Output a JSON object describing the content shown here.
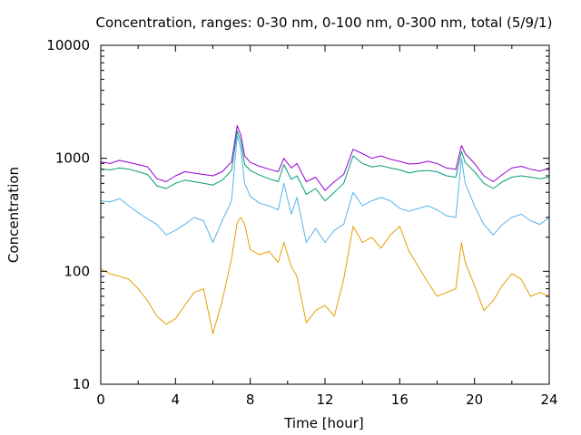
{
  "chart_data": {
    "type": "line",
    "title": "Concentration, ranges: 0-30 nm, 0-100 nm, 0-300 nm, total (5/9/1)",
    "xlabel": "Time [hour]",
    "ylabel": "Concentration",
    "xlim": [
      0,
      24
    ],
    "ylim": [
      10,
      10000
    ],
    "yscale": "log",
    "grid": false,
    "xticks": [
      0,
      4,
      8,
      12,
      16,
      20,
      24
    ],
    "yticks": [
      10,
      100,
      1000,
      10000
    ],
    "xtick_labels": [
      "0",
      "4",
      "8",
      "12",
      "16",
      "20",
      "24"
    ],
    "ytick_labels": [
      "10",
      "100",
      "1000",
      "10000"
    ],
    "x": [
      0,
      0.5,
      1,
      1.5,
      2,
      2.5,
      3,
      3.5,
      4,
      4.5,
      5,
      5.5,
      6,
      6.5,
      7,
      7.3,
      7.5,
      7.7,
      8,
      8.5,
      9,
      9.5,
      9.8,
      10.2,
      10.5,
      11,
      11.5,
      12,
      12.5,
      13,
      13.5,
      14,
      14.5,
      15,
      15.5,
      16,
      16.5,
      17,
      17.5,
      18,
      18.5,
      19,
      19.3,
      19.5,
      20,
      20.5,
      21,
      21.5,
      22,
      22.5,
      23,
      23.5,
      24
    ],
    "series": [
      {
        "color": "#9400d3",
        "values": [
          930,
          900,
          960,
          920,
          880,
          840,
          660,
          620,
          700,
          760,
          740,
          720,
          700,
          760,
          930,
          1950,
          1600,
          1050,
          920,
          850,
          800,
          760,
          1000,
          820,
          900,
          620,
          680,
          520,
          620,
          720,
          1200,
          1100,
          1000,
          1050,
          980,
          940,
          890,
          900,
          940,
          900,
          820,
          800,
          1300,
          1100,
          900,
          700,
          620,
          720,
          820,
          850,
          800,
          770,
          820
        ]
      },
      {
        "color": "#009e73",
        "values": [
          800,
          790,
          820,
          800,
          760,
          720,
          570,
          540,
          600,
          640,
          620,
          600,
          580,
          640,
          780,
          1750,
          1400,
          880,
          780,
          710,
          660,
          620,
          880,
          650,
          700,
          480,
          540,
          420,
          500,
          600,
          1050,
          900,
          840,
          860,
          820,
          790,
          740,
          770,
          780,
          760,
          700,
          680,
          1150,
          920,
          760,
          600,
          540,
          620,
          680,
          700,
          680,
          660,
          680
        ]
      },
      {
        "color": "#56b4e9",
        "values": [
          420,
          410,
          440,
          380,
          330,
          290,
          260,
          210,
          230,
          260,
          300,
          280,
          180,
          280,
          420,
          1600,
          1200,
          600,
          460,
          400,
          380,
          350,
          600,
          320,
          450,
          180,
          240,
          180,
          230,
          260,
          500,
          380,
          420,
          450,
          420,
          360,
          340,
          360,
          380,
          350,
          310,
          300,
          1000,
          600,
          380,
          260,
          210,
          260,
          300,
          320,
          280,
          260,
          300
        ]
      },
      {
        "color": "#e69f00",
        "values": [
          105,
          95,
          90,
          85,
          70,
          55,
          40,
          34,
          38,
          50,
          65,
          70,
          28,
          55,
          130,
          270,
          300,
          260,
          155,
          140,
          150,
          120,
          180,
          110,
          90,
          35,
          45,
          50,
          40,
          85,
          250,
          180,
          200,
          160,
          210,
          250,
          150,
          110,
          80,
          60,
          65,
          70,
          180,
          120,
          75,
          45,
          55,
          75,
          95,
          85,
          60,
          65,
          60
        ]
      }
    ]
  }
}
